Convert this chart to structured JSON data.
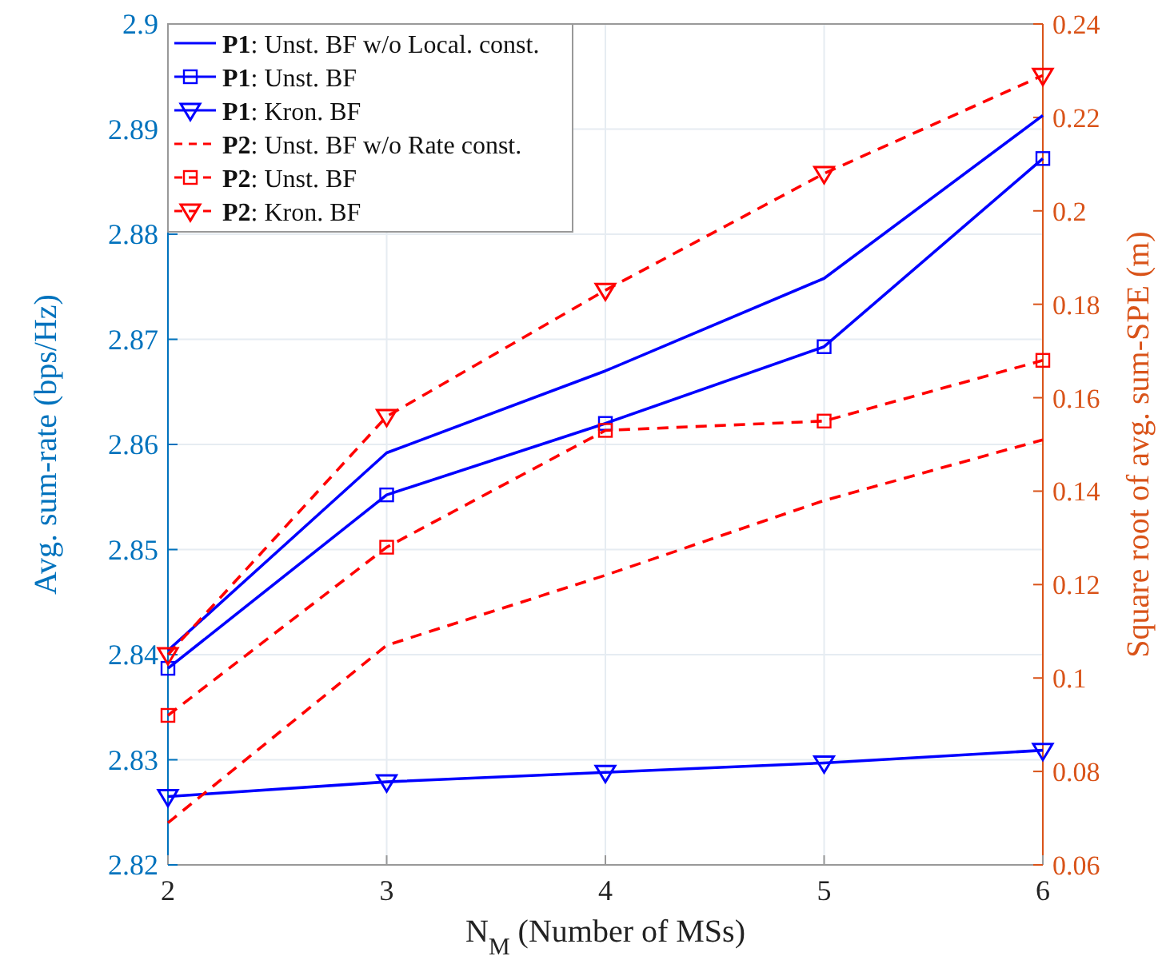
{
  "chart_data": {
    "type": "line",
    "xlabel": "N$_{M}$ (Number of MSs)",
    "ylabel": "Avg. sum-rate (bps/Hz)",
    "y2label": "Square root of avg. sum-SPE (m)",
    "x": [
      2,
      3,
      4,
      5,
      6
    ],
    "xlim": [
      2,
      6
    ],
    "xticks": [
      2,
      3,
      4,
      5,
      6
    ],
    "ylim": [
      2.82,
      2.9
    ],
    "yticks": [
      2.82,
      2.83,
      2.84,
      2.85,
      2.86,
      2.87,
      2.88,
      2.89,
      2.9
    ],
    "y2lim": [
      0.06,
      0.24
    ],
    "y2ticks": [
      0.06,
      0.08,
      0.1,
      0.12,
      0.14,
      0.16,
      0.18,
      0.2,
      0.22,
      0.24
    ],
    "grid": true,
    "legend": "top left",
    "series": [
      {
        "name": "**P1**: Unst. BF w/o Local. const.",
        "color": "#0000ff",
        "marker": "none",
        "line_style": "solid",
        "values": [
          2.8404,
          2.8592,
          2.867,
          2.8758,
          2.8913
        ]
      },
      {
        "name": "**P1**: Unst. BF",
        "color": "#0000ff",
        "marker": "square",
        "line_style": "solid",
        "values": [
          2.8387,
          2.8552,
          2.862,
          2.8693,
          2.8872
        ]
      },
      {
        "name": "**P1**: Kron. BF",
        "color": "#0000ff",
        "marker": "triangle",
        "line_style": "solid",
        "values": [
          2.8265,
          2.8279,
          2.8288,
          2.8297,
          2.8309
        ]
      },
      {
        "name": "**P2**: Unst. BF w/o Rate const.",
        "color": "#ff0000",
        "marker": "none",
        "line_style": "dashed",
        "axis": "y2",
        "values": [
          0.069,
          0.107,
          0.122,
          0.138,
          0.151
        ]
      },
      {
        "name": "**P2**: Unst. BF",
        "color": "#ff0000",
        "marker": "square",
        "line_style": "dashed",
        "axis": "y2",
        "values": [
          0.092,
          0.128,
          0.153,
          0.155,
          0.168
        ]
      },
      {
        "name": "**P2**: Kron. BF",
        "color": "#ff0000",
        "marker": "triangle",
        "line_style": "dashed",
        "axis": "y2",
        "values": [
          0.105,
          0.156,
          0.183,
          0.208,
          0.229
        ]
      }
    ]
  }
}
